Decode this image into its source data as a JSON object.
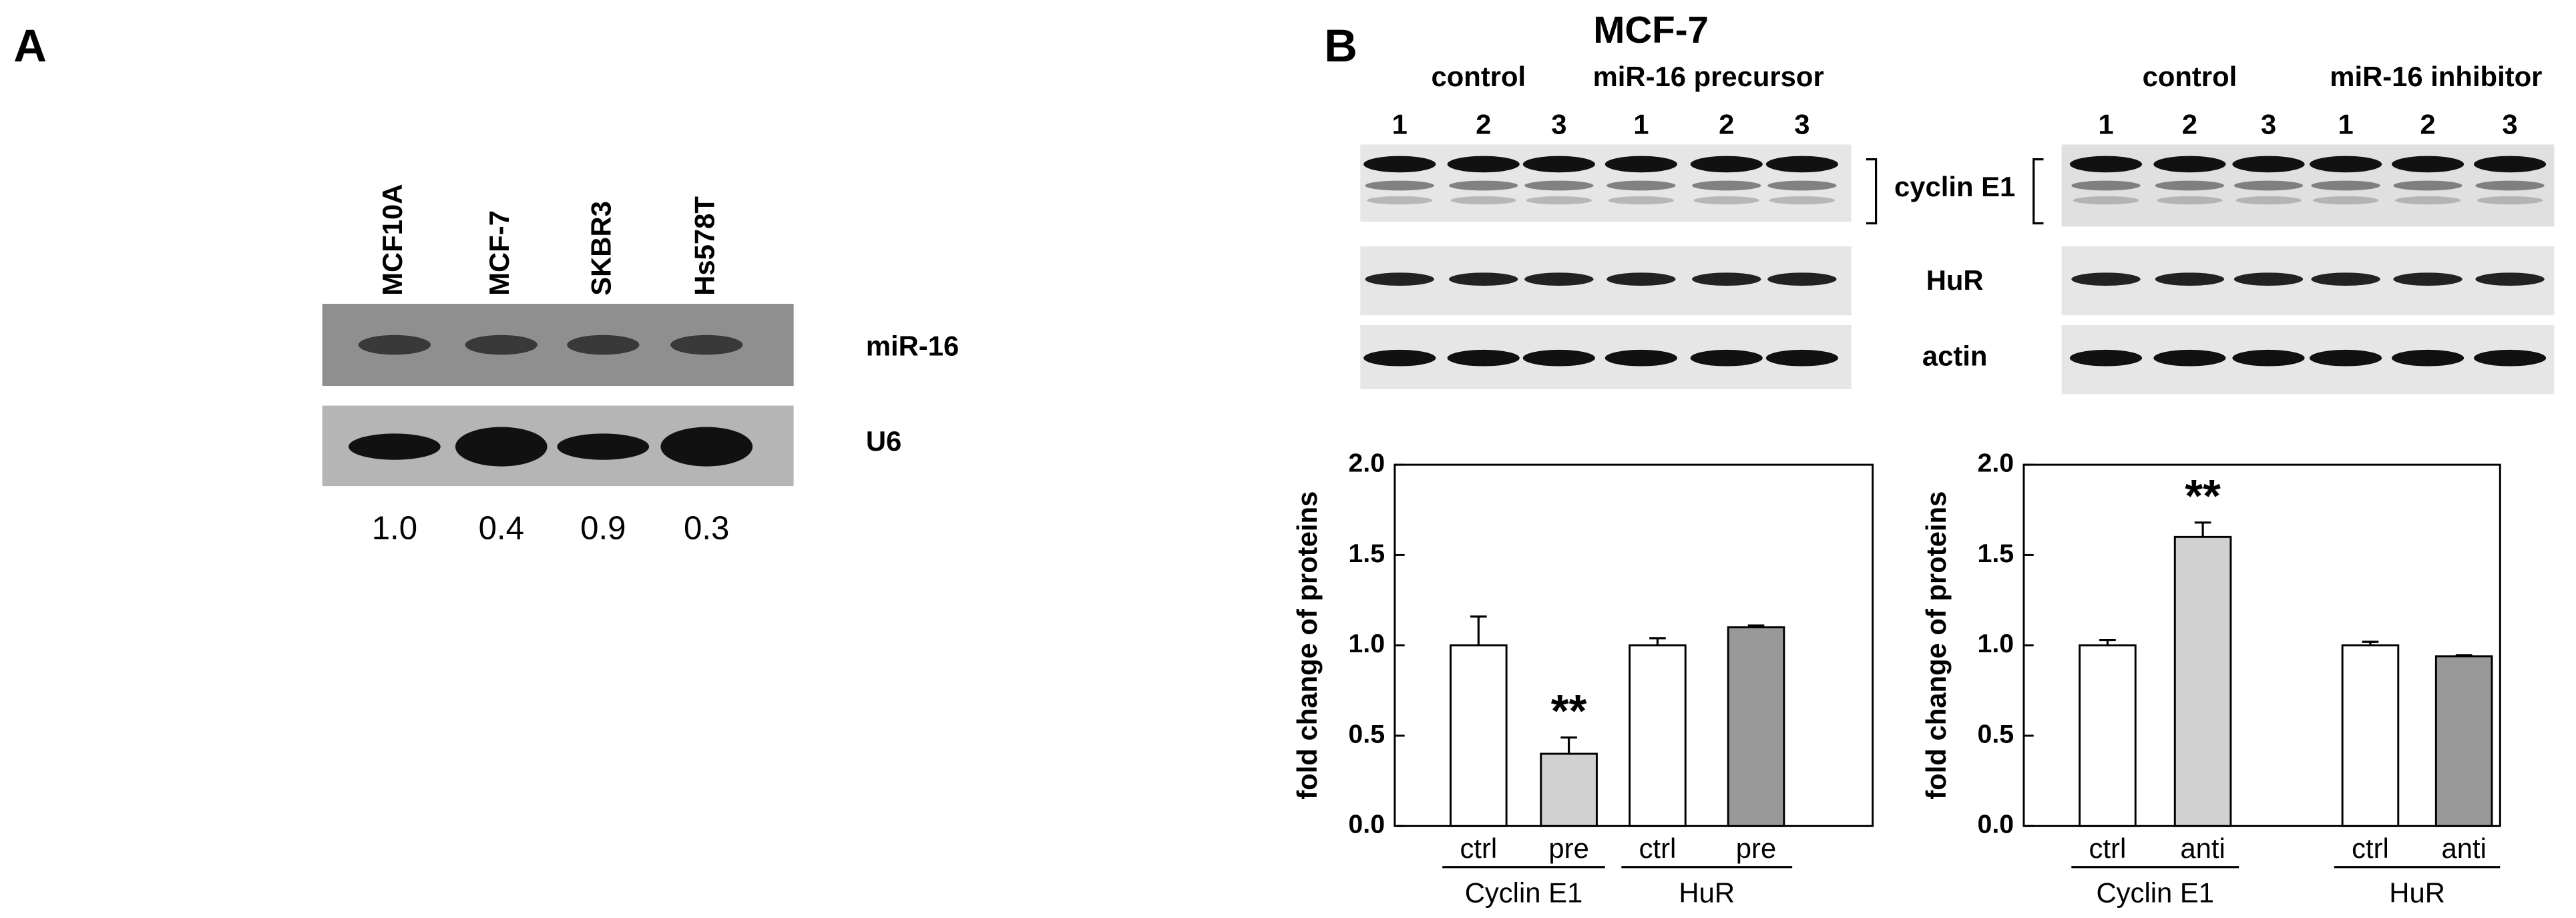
{
  "panel_a": {
    "label": "A",
    "lanes": [
      "MCF10A",
      "MCF-7",
      "SKBR3",
      "Hs578T"
    ],
    "rows": [
      "miR-16",
      "U6"
    ],
    "ratios": [
      "1.0",
      "0.4",
      "0.9",
      "0.3"
    ]
  },
  "panel_b": {
    "label": "B",
    "title": "MCF-7",
    "left": {
      "groups": [
        "control",
        "miR-16 precursor"
      ],
      "lanes": [
        "1",
        "2",
        "3",
        "1",
        "2",
        "3"
      ]
    },
    "right": {
      "groups": [
        "control",
        "miR-16 inhibitor"
      ],
      "lanes": [
        "1",
        "2",
        "3",
        "1",
        "2",
        "3"
      ]
    },
    "rows": [
      "cyclin E1",
      "HuR",
      "actin"
    ]
  },
  "chart_data": [
    {
      "type": "bar",
      "y_label": "fold change of proteins",
      "ylim": [
        0,
        2
      ],
      "yticks": [
        {
          "value": 0,
          "label": "0.0"
        },
        {
          "value": 0.5,
          "label": "0.5"
        },
        {
          "value": 1,
          "label": "1.0"
        },
        {
          "value": 1.5,
          "label": "1.5"
        },
        {
          "value": 2,
          "label": "2.0"
        }
      ],
      "categories": [
        "ctrl",
        "pre",
        "ctrl",
        "pre"
      ],
      "groups": [
        "Cyclin E1",
        "HuR"
      ],
      "values": [
        1.0,
        0.4,
        1.0,
        1.1
      ],
      "errors": [
        0.16,
        0.09,
        0.04,
        0.01
      ],
      "colors": [
        "#ffffff",
        "#d0d0d0",
        "#ffffff",
        "#999999"
      ],
      "significance": [
        null,
        "**",
        null,
        null
      ]
    },
    {
      "type": "bar",
      "y_label": "fold change of proteins",
      "ylim": [
        0,
        2
      ],
      "yticks": [
        {
          "value": 0,
          "label": "0.0"
        },
        {
          "value": 0.5,
          "label": "0.5"
        },
        {
          "value": 1,
          "label": "1.0"
        },
        {
          "value": 1.5,
          "label": "1.5"
        },
        {
          "value": 2,
          "label": "2.0"
        }
      ],
      "categories": [
        "ctrl",
        "anti",
        "ctrl",
        "anti"
      ],
      "groups": [
        "Cyclin E1",
        "HuR"
      ],
      "values": [
        1.0,
        1.6,
        1.0,
        0.94
      ],
      "errors": [
        0.03,
        0.08,
        0.02,
        0.005
      ],
      "colors": [
        "#ffffff",
        "#d0d0d0",
        "#ffffff",
        "#999999"
      ],
      "significance": [
        null,
        "**",
        null,
        null
      ]
    }
  ]
}
